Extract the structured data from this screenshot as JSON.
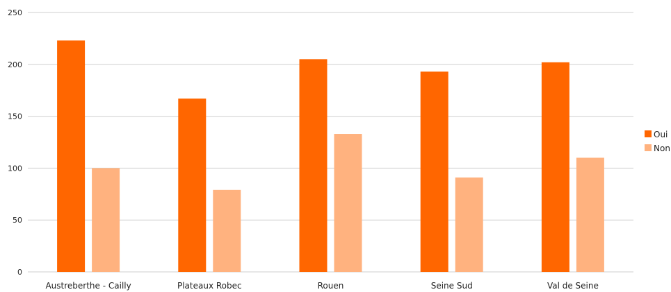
{
  "chart_data": {
    "type": "bar",
    "categories": [
      "Austreberthe - Cailly",
      "Plateaux Robec",
      "Rouen",
      "Seine Sud",
      "Val de Seine"
    ],
    "series": [
      {
        "name": "Oui",
        "color": "#ff6600",
        "values": [
          223,
          167,
          205,
          193,
          202
        ]
      },
      {
        "name": "Non",
        "color": "#ffb27f",
        "values": [
          100,
          79,
          133,
          91,
          110
        ]
      }
    ],
    "ylim": [
      0,
      250
    ],
    "yticks": [
      0,
      50,
      100,
      150,
      200,
      250
    ],
    "grid": true,
    "legend_position": "right"
  }
}
